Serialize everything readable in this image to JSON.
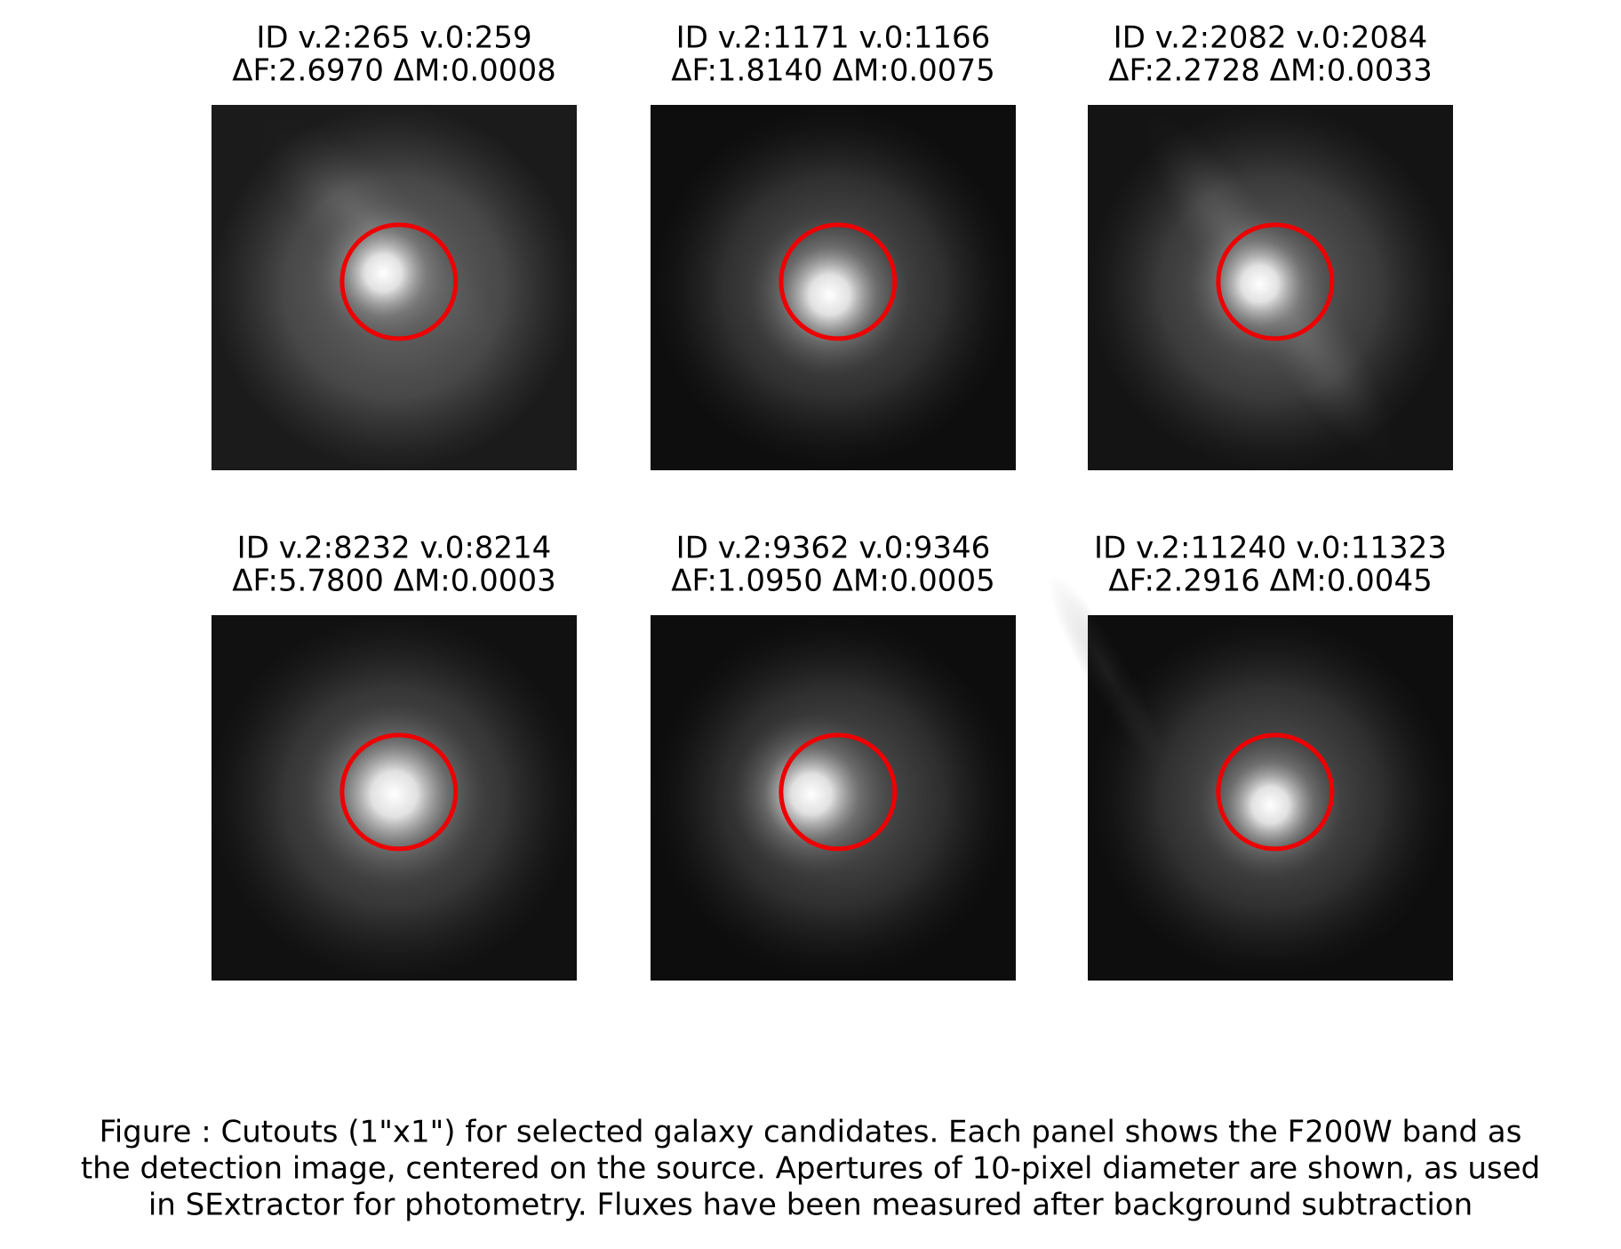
{
  "panels": [
    {
      "title": "ID v.2:265 v.0:259",
      "subtitle": "ΔF:2.6970 ΔM:0.0008"
    },
    {
      "title": "ID v.2:1171 v.0:1166",
      "subtitle": "ΔF:1.8140 ΔM:0.0075"
    },
    {
      "title": "ID v.2:2082 v.0:2084",
      "subtitle": "ΔF:2.2728 ΔM:0.0033"
    },
    {
      "title": "ID v.2:8232 v.0:8214",
      "subtitle": "ΔF:5.7800 ΔM:0.0003"
    },
    {
      "title": "ID v.2:9362 v.0:9346",
      "subtitle": "ΔF:1.0950 ΔM:0.0005"
    },
    {
      "title": "ID v.2:11240 v.0:11323",
      "subtitle": "ΔF:2.2916 ΔM:0.0045"
    }
  ],
  "caption": [
    "Figure : Cutouts (1\"x1\") for selected galaxy candidates. Each panel shows the F200W band as",
    "the detection image, centered on the source. Apertures of 10-pixel diameter are shown, as used",
    "in SExtractor for photometry. Fluxes have been measured after background subtraction"
  ]
}
